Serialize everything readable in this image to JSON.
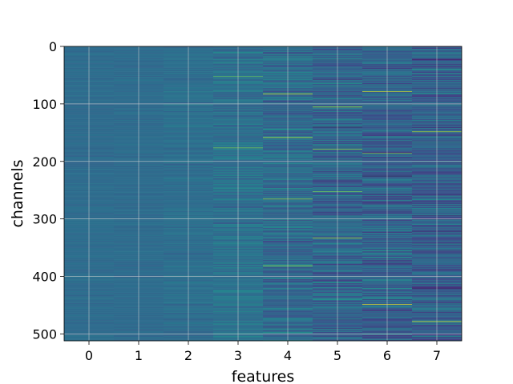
{
  "chart_data": {
    "type": "heatmap",
    "title": "",
    "xlabel": "features",
    "ylabel": "channels",
    "colormap": "viridis",
    "grid": true,
    "rows": 512,
    "columns": 8,
    "xticks": [
      0,
      1,
      2,
      3,
      4,
      5,
      6,
      7
    ],
    "yticks": [
      0,
      100,
      200,
      300,
      400,
      500
    ],
    "xlim": [
      -0.5,
      7.5
    ],
    "ylim": [
      512,
      0
    ],
    "value_range": [
      0,
      1
    ],
    "column_summary": [
      {
        "feature": 0,
        "baseline": 0.36,
        "spread": 0.04
      },
      {
        "feature": 1,
        "baseline": 0.36,
        "spread": 0.04
      },
      {
        "feature": 2,
        "baseline": 0.37,
        "spread": 0.06
      },
      {
        "feature": 3,
        "baseline": 0.38,
        "spread": 0.12
      },
      {
        "feature": 4,
        "baseline": 0.35,
        "spread": 0.17
      },
      {
        "feature": 5,
        "baseline": 0.33,
        "spread": 0.2
      },
      {
        "feature": 6,
        "baseline": 0.32,
        "spread": 0.21
      },
      {
        "feature": 7,
        "baseline": 0.31,
        "spread": 0.22
      }
    ],
    "highlights": [
      {
        "feature": 4,
        "channel": 82,
        "value": 0.95
      },
      {
        "feature": 4,
        "channel": 158,
        "value": 0.9
      },
      {
        "feature": 4,
        "channel": 265,
        "value": 0.85
      },
      {
        "feature": 4,
        "channel": 381,
        "value": 0.85
      },
      {
        "feature": 5,
        "channel": 105,
        "value": 0.88
      },
      {
        "feature": 5,
        "channel": 178,
        "value": 0.85
      },
      {
        "feature": 5,
        "channel": 252,
        "value": 0.78
      },
      {
        "feature": 5,
        "channel": 333,
        "value": 0.88
      },
      {
        "feature": 6,
        "channel": 78,
        "value": 0.92
      },
      {
        "feature": 6,
        "channel": 448,
        "value": 0.95
      },
      {
        "feature": 6,
        "channel": 185,
        "value": 0.8
      },
      {
        "feature": 7,
        "channel": 148,
        "value": 0.88
      },
      {
        "feature": 7,
        "channel": 478,
        "value": 0.95
      },
      {
        "feature": 3,
        "channel": 52,
        "value": 0.75
      },
      {
        "feature": 3,
        "channel": 176,
        "value": 0.8
      },
      {
        "feature": 5,
        "channel": 140,
        "value": 0.02
      },
      {
        "feature": 6,
        "channel": 225,
        "value": 0.02
      },
      {
        "feature": 7,
        "channel": 420,
        "value": 0.03
      },
      {
        "feature": 7,
        "channel": 22,
        "value": 0.04
      }
    ]
  }
}
